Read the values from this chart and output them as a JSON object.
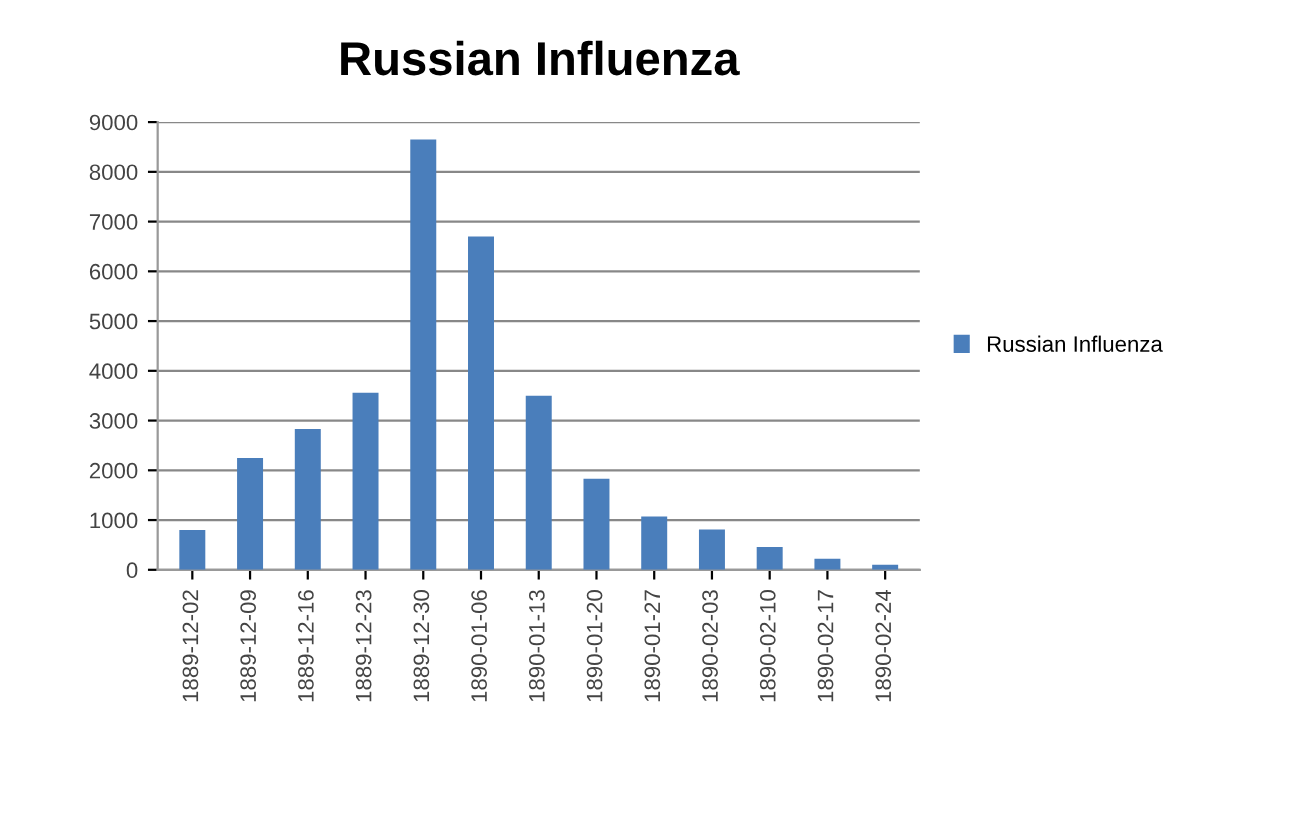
{
  "chart_data": {
    "type": "bar",
    "title": "Russian Influenza",
    "categories": [
      "1889-12-02",
      "1889-12-09",
      "1889-12-16",
      "1889-12-23",
      "1889-12-30",
      "1890-01-06",
      "1890-01-13",
      "1890-01-20",
      "1890-01-27",
      "1890-02-03",
      "1890-02-10",
      "1890-02-17",
      "1890-02-24"
    ],
    "series": [
      {
        "name": "Russian Influenza",
        "color": "#4a7ebb",
        "values": [
          800,
          2250,
          2830,
          3560,
          8650,
          6700,
          3500,
          1830,
          1070,
          810,
          460,
          220,
          100
        ]
      }
    ],
    "ylim": [
      0,
      9000
    ],
    "yticks": [
      0,
      1000,
      2000,
      3000,
      4000,
      5000,
      6000,
      7000,
      8000,
      9000
    ],
    "grid": "y",
    "legend": "right"
  }
}
